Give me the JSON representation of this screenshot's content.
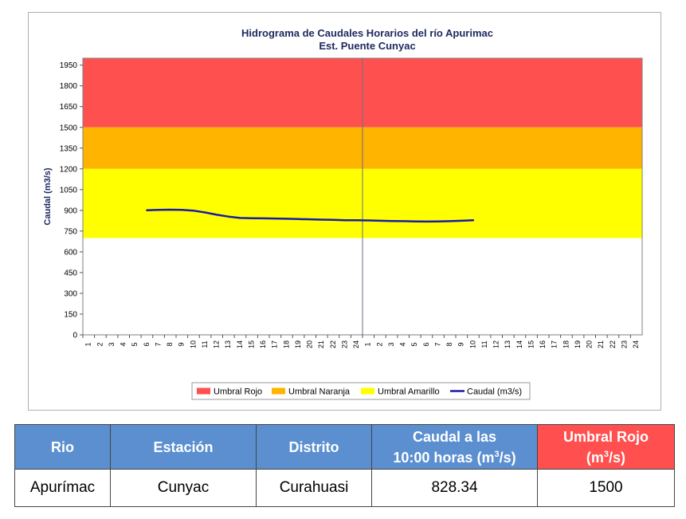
{
  "chart_data": {
    "type": "line",
    "title": "Hidrograma de Caudales Horarios del río Apurimac",
    "subtitle": "Est. Puente Cunyac",
    "ylabel": "Caudal  (m3/s)",
    "xlabel": "",
    "ylim": [
      0,
      2000
    ],
    "yticks": [
      0,
      150,
      300,
      450,
      600,
      750,
      900,
      1050,
      1200,
      1350,
      1500,
      1650,
      1800,
      1950
    ],
    "x_ticks": [
      "1",
      "2",
      "3",
      "4",
      "5",
      "6",
      "7",
      "8",
      "9",
      "10",
      "11",
      "12",
      "13",
      "14",
      "15",
      "16",
      "17",
      "18",
      "19",
      "20",
      "21",
      "22",
      "23",
      "24",
      "1",
      "2",
      "3",
      "4",
      "5",
      "6",
      "7",
      "8",
      "9",
      "10",
      "11",
      "12",
      "13",
      "14",
      "15",
      "16",
      "17",
      "18",
      "19",
      "20",
      "21",
      "22",
      "23",
      "24"
    ],
    "day_separator_after": 24,
    "grid": false,
    "threshold_bands": [
      {
        "name": "Umbral Rojo",
        "from": 1500,
        "to": 2000,
        "color": "#ff5050"
      },
      {
        "name": "Umbral Naranja",
        "from": 1200,
        "to": 1500,
        "color": "#ffb400"
      },
      {
        "name": "Umbral Amarillo",
        "from": 700,
        "to": 1200,
        "color": "#ffff00"
      }
    ],
    "series": [
      {
        "name": "Caudal (m3/s)",
        "color": "#1a1aaa",
        "x_index": [
          6,
          7,
          8,
          9,
          10,
          11,
          12,
          13,
          14,
          15,
          16,
          17,
          18,
          19,
          20,
          21,
          22,
          23,
          24,
          25,
          26,
          27,
          28,
          29,
          30,
          31,
          32,
          33,
          34
        ],
        "values": [
          900,
          903,
          905,
          903,
          898,
          885,
          868,
          855,
          845,
          843,
          842,
          841,
          839,
          837,
          835,
          833,
          831,
          829,
          828,
          827,
          825,
          823,
          822,
          820,
          819,
          820,
          822,
          825,
          828.34
        ]
      }
    ],
    "legend_position": "bottom",
    "legend": [
      "Umbral Rojo",
      "Umbral Naranja",
      "Umbral Amarillo",
      "Caudal (m3/s)"
    ]
  },
  "table": {
    "headers": [
      "Rio",
      "Estación",
      "Distrito",
      "Caudal a las",
      "10:00 horas (m",
      "3",
      "/s)",
      "Umbral Rojo",
      "(m",
      "3",
      "/s)"
    ],
    "row": [
      "Apurímac",
      "Cunyac",
      "Curahuasi",
      "828.34",
      "1500"
    ]
  }
}
